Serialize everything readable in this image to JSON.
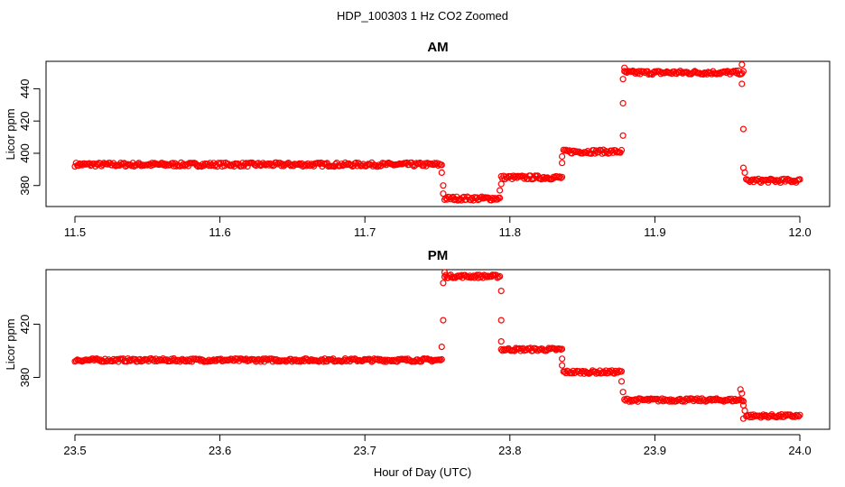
{
  "title": "HDP_100303  1 Hz CO2 Zoomed",
  "xlabel": "Hour of Day (UTC)",
  "colors": {
    "points": "#ff0000",
    "axes": "#000000",
    "background": "#ffffff"
  },
  "chart_data": [
    {
      "type": "scatter",
      "title": "AM",
      "xlabel": "Hour of Day (UTC)",
      "ylabel": "Licor ppm",
      "xlim": [
        11.5,
        12.0
      ],
      "ylim": [
        367,
        457
      ],
      "xticks": [
        "11.5",
        "11.6",
        "11.7",
        "11.8",
        "11.9",
        "12.0"
      ],
      "yticks": [
        "380",
        "400",
        "420",
        "440"
      ],
      "grid": false,
      "segments": [
        {
          "x_start": 11.5,
          "x_end": 11.753,
          "y": 393
        },
        {
          "x_start": 11.755,
          "x_end": 11.793,
          "y": 372
        },
        {
          "x_start": 11.794,
          "x_end": 11.836,
          "y": 385
        },
        {
          "x_start": 11.837,
          "x_end": 11.877,
          "y": 401
        },
        {
          "x_start": 11.879,
          "x_end": 11.961,
          "y": 450
        },
        {
          "x_start": 11.963,
          "x_end": 12.0,
          "y": 383
        }
      ],
      "transitions": [
        {
          "x": 11.753,
          "y": 388
        },
        {
          "x": 11.754,
          "y": 380
        },
        {
          "x": 11.754,
          "y": 375
        },
        {
          "x": 11.793,
          "y": 377
        },
        {
          "x": 11.794,
          "y": 381
        },
        {
          "x": 11.836,
          "y": 394
        },
        {
          "x": 11.836,
          "y": 398
        },
        {
          "x": 11.878,
          "y": 411
        },
        {
          "x": 11.878,
          "y": 431
        },
        {
          "x": 11.878,
          "y": 446
        },
        {
          "x": 11.879,
          "y": 453
        },
        {
          "x": 11.96,
          "y": 443
        },
        {
          "x": 11.961,
          "y": 415
        },
        {
          "x": 11.961,
          "y": 391
        },
        {
          "x": 11.962,
          "y": 388
        },
        {
          "x": 11.96,
          "y": 455
        }
      ]
    },
    {
      "type": "scatter",
      "title": "PM",
      "xlabel": "Hour of Day (UTC)",
      "ylabel": "Licor ppm",
      "xlim": [
        23.5,
        24.0
      ],
      "ylim": [
        341,
        461
      ],
      "xticks": [
        "23.5",
        "23.6",
        "23.7",
        "23.8",
        "23.9",
        "24.0"
      ],
      "yticks": [
        "380",
        "420"
      ],
      "grid": false,
      "segments": [
        {
          "x_start": 23.5,
          "x_end": 23.753,
          "y": 393
        },
        {
          "x_start": 23.755,
          "x_end": 23.793,
          "y": 456
        },
        {
          "x_start": 23.794,
          "x_end": 23.836,
          "y": 401
        },
        {
          "x_start": 23.837,
          "x_end": 23.877,
          "y": 384
        },
        {
          "x_start": 23.879,
          "x_end": 23.961,
          "y": 363
        },
        {
          "x_start": 23.963,
          "x_end": 24.0,
          "y": 351
        }
      ],
      "transitions": [
        {
          "x": 23.753,
          "y": 403
        },
        {
          "x": 23.754,
          "y": 423
        },
        {
          "x": 23.754,
          "y": 451
        },
        {
          "x": 23.755,
          "y": 459
        },
        {
          "x": 23.794,
          "y": 445
        },
        {
          "x": 23.794,
          "y": 423
        },
        {
          "x": 23.794,
          "y": 407
        },
        {
          "x": 23.836,
          "y": 394
        },
        {
          "x": 23.836,
          "y": 389
        },
        {
          "x": 23.877,
          "y": 377
        },
        {
          "x": 23.878,
          "y": 369
        },
        {
          "x": 23.96,
          "y": 368
        },
        {
          "x": 23.961,
          "y": 359
        },
        {
          "x": 23.961,
          "y": 349
        },
        {
          "x": 23.962,
          "y": 355
        },
        {
          "x": 23.959,
          "y": 371
        }
      ]
    }
  ]
}
